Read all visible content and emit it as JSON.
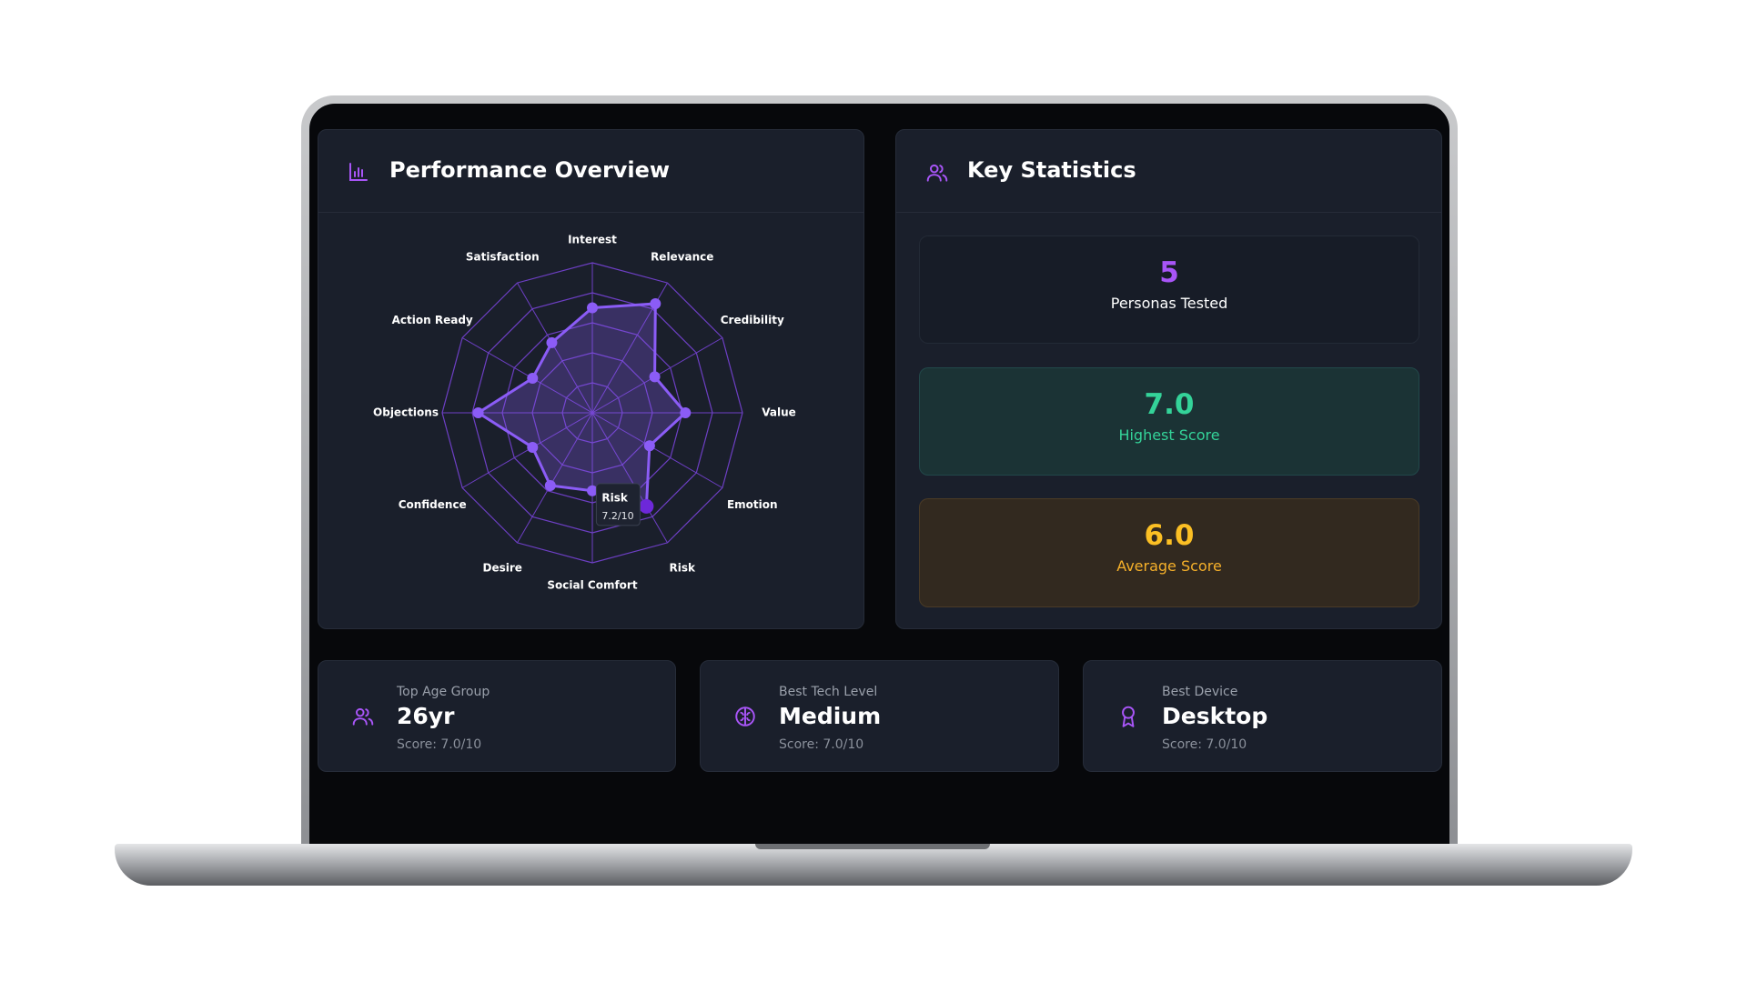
{
  "chart_data": {
    "type": "radar",
    "title": "Performance Overview",
    "categories": [
      "Interest",
      "Relevance",
      "Credibility",
      "Value",
      "Emotion",
      "Risk",
      "Social Comfort",
      "Desire",
      "Confidence",
      "Objections",
      "Action Ready",
      "Satisfaction"
    ],
    "values": [
      7.0,
      8.4,
      4.8,
      6.2,
      4.4,
      7.2,
      5.2,
      5.6,
      4.6,
      7.6,
      4.6,
      5.4
    ],
    "rlim": [
      0,
      10
    ],
    "rticks": [
      2,
      4,
      6,
      8,
      10
    ],
    "color": "#8b5cf6",
    "tooltip": {
      "label": "Risk",
      "value_label": "7.2/10"
    }
  },
  "key_statistics": {
    "title": "Key Statistics",
    "items": [
      {
        "value": "5",
        "label": "Personas Tested"
      },
      {
        "value": "7.0",
        "label": "Highest Score"
      },
      {
        "value": "6.0",
        "label": "Average Score"
      }
    ]
  },
  "highlights": [
    {
      "label": "Top Age Group",
      "value": "26yr",
      "score": "Score: 7.0/10"
    },
    {
      "label": "Best Tech Level",
      "value": "Medium",
      "score": "Score: 7.0/10"
    },
    {
      "label": "Best Device",
      "value": "Desktop",
      "score": "Score: 7.0/10"
    }
  ]
}
